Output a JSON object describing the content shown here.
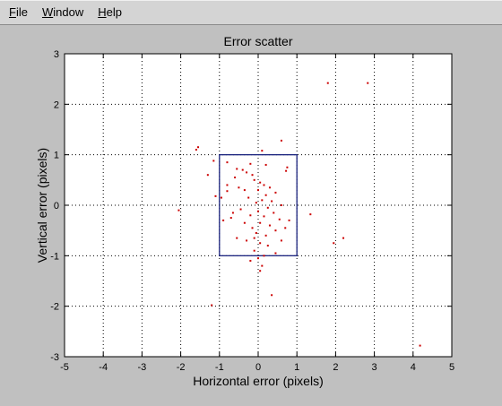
{
  "menu": {
    "items": [
      {
        "label": "File",
        "underline": "F",
        "rest": "ile"
      },
      {
        "label": "Window",
        "underline": "W",
        "rest": "indow"
      },
      {
        "label": "Help",
        "underline": "H",
        "rest": "elp"
      }
    ]
  },
  "colors": {
    "figure_background": "#c0c0c0",
    "axes_background": "#ffffff",
    "points": "#cc0000",
    "box": "#1a237e",
    "grid": "#000000"
  },
  "chart_data": {
    "type": "scatter",
    "title": "Error scatter",
    "xlabel": "Horizontal error (pixels)",
    "ylabel": "Vertical error (pixels)",
    "xlim": [
      -5,
      5
    ],
    "ylim": [
      -3,
      3
    ],
    "xticks": [
      -5,
      -4,
      -3,
      -2,
      -1,
      0,
      1,
      2,
      3,
      4,
      5
    ],
    "yticks": [
      -3,
      -2,
      -1,
      0,
      1,
      2,
      3
    ],
    "grid": true,
    "grid_style": "dotted",
    "box": {
      "x0": -1,
      "x1": 1,
      "y0": -1,
      "y1": 1
    },
    "points": [
      [
        1.8,
        2.42
      ],
      [
        2.83,
        2.42
      ],
      [
        0.6,
        1.28
      ],
      [
        -1.55,
        1.15
      ],
      [
        -1.6,
        1.1
      ],
      [
        0.1,
        1.08
      ],
      [
        -1.15,
        0.88
      ],
      [
        -0.8,
        0.85
      ],
      [
        -0.2,
        0.82
      ],
      [
        0.2,
        0.8
      ],
      [
        0.75,
        0.75
      ],
      [
        0.72,
        0.68
      ],
      [
        -0.55,
        0.72
      ],
      [
        -0.4,
        0.7
      ],
      [
        -0.3,
        0.65
      ],
      [
        -0.15,
        0.6
      ],
      [
        -1.3,
        0.6
      ],
      [
        -0.6,
        0.55
      ],
      [
        -0.1,
        0.5
      ],
      [
        0.05,
        0.45
      ],
      [
        0.15,
        0.4
      ],
      [
        0.3,
        0.35
      ],
      [
        -0.5,
        0.35
      ],
      [
        -0.35,
        0.3
      ],
      [
        -0.8,
        0.28
      ],
      [
        0.0,
        0.3
      ],
      [
        0.45,
        0.25
      ],
      [
        -1.1,
        0.18
      ],
      [
        -0.95,
        0.15
      ],
      [
        0.2,
        0.2
      ],
      [
        -0.25,
        0.15
      ],
      [
        0.1,
        0.1
      ],
      [
        0.35,
        0.08
      ],
      [
        -0.05,
        0.05
      ],
      [
        0.6,
        0.0
      ],
      [
        0.25,
        -0.05
      ],
      [
        -0.45,
        -0.08
      ],
      [
        0.0,
        -0.12
      ],
      [
        -2.05,
        -0.1
      ],
      [
        -0.65,
        -0.15
      ],
      [
        0.4,
        -0.15
      ],
      [
        -0.2,
        -0.2
      ],
      [
        0.15,
        -0.22
      ],
      [
        1.35,
        -0.18
      ],
      [
        -0.7,
        -0.25
      ],
      [
        0.55,
        -0.28
      ],
      [
        -0.9,
        -0.3
      ],
      [
        0.05,
        -0.35
      ],
      [
        -0.35,
        -0.35
      ],
      [
        0.3,
        -0.4
      ],
      [
        -0.15,
        -0.45
      ],
      [
        0.7,
        -0.45
      ],
      [
        0.45,
        -0.5
      ],
      [
        -0.05,
        -0.55
      ],
      [
        0.2,
        -0.6
      ],
      [
        -0.55,
        -0.65
      ],
      [
        0.6,
        -0.7
      ],
      [
        -0.3,
        -0.7
      ],
      [
        0.05,
        -0.75
      ],
      [
        0.25,
        -0.8
      ],
      [
        1.95,
        -0.75
      ],
      [
        2.2,
        -0.65
      ],
      [
        -0.1,
        -0.9
      ],
      [
        0.15,
        -1.0
      ],
      [
        0.0,
        -1.05
      ],
      [
        0.45,
        -0.95
      ],
      [
        -0.2,
        -1.1
      ],
      [
        0.1,
        -1.2
      ],
      [
        0.05,
        -1.3
      ],
      [
        0.35,
        -1.78
      ],
      [
        -1.2,
        -1.98
      ],
      [
        4.18,
        -2.78
      ],
      [
        -0.8,
        0.4
      ],
      [
        0.8,
        -0.3
      ],
      [
        -0.1,
        -0.65
      ]
    ]
  }
}
